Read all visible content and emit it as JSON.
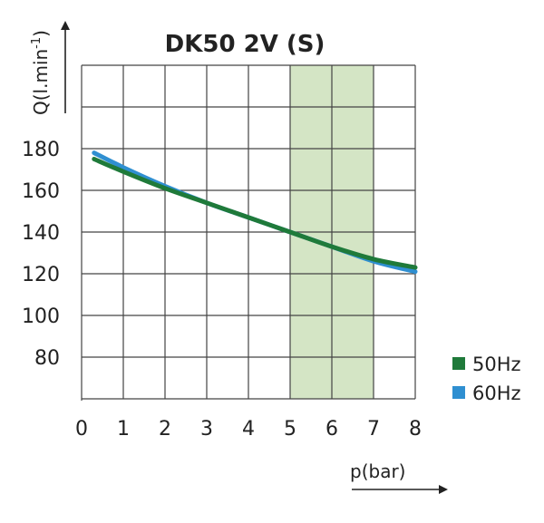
{
  "chart_data": {
    "type": "line",
    "title": "DK50 2V (S)",
    "xlabel": "p(bar)",
    "ylabel_main": "Q(l.min",
    "ylabel_sup": "-1",
    "ylabel_close": ")",
    "xlim": [
      0,
      8
    ],
    "ylim": [
      60,
      220
    ],
    "x_ticks": [
      0,
      1,
      2,
      3,
      4,
      5,
      6,
      7,
      8
    ],
    "x_tick_labels": [
      "0",
      "1",
      "2",
      "3",
      "4",
      "5",
      "6",
      "7",
      "8"
    ],
    "y_ticks": [
      80,
      100,
      120,
      140,
      160,
      180
    ],
    "y_tick_labels": [
      "80",
      "100",
      "120",
      "140",
      "160",
      "180"
    ],
    "highlight_band": {
      "x_from": 5,
      "x_to": 7,
      "color": "#d4e5c5"
    },
    "grid": true,
    "legend_position": "bottom-right",
    "series": [
      {
        "name": "50Hz",
        "color": "#1f7a3a",
        "x": [
          0.3,
          1,
          2,
          3,
          4,
          5,
          6,
          7,
          8
        ],
        "y": [
          175,
          169,
          161,
          154,
          147,
          140,
          133,
          127,
          123
        ]
      },
      {
        "name": "60Hz",
        "color": "#2f8fd1",
        "x": [
          0.3,
          1,
          2,
          3,
          4,
          5,
          6,
          7,
          8
        ],
        "y": [
          178,
          171,
          162,
          154,
          147,
          140,
          133,
          126,
          121
        ]
      }
    ]
  }
}
